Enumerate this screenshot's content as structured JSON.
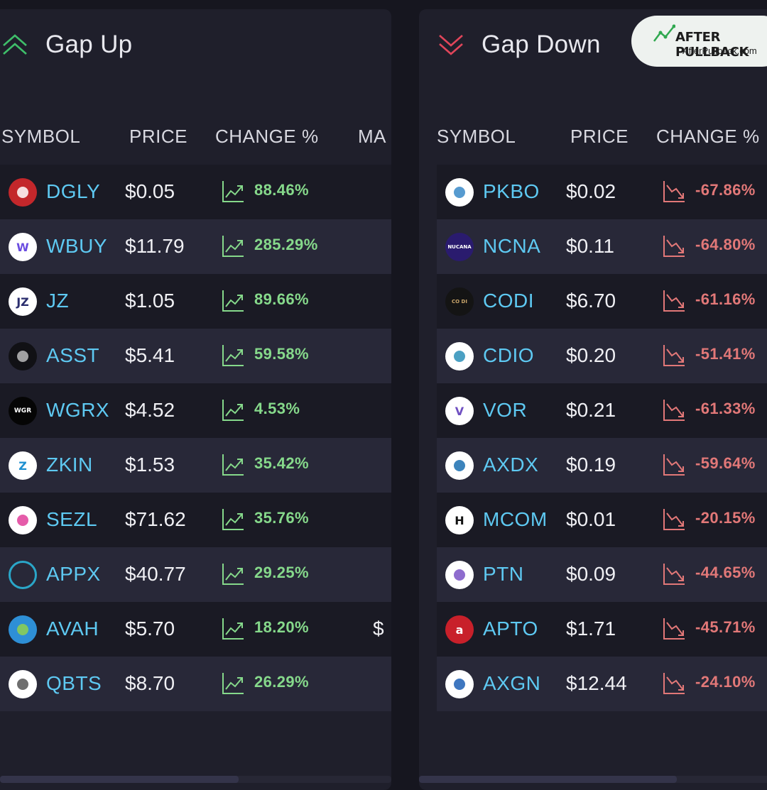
{
  "accent": {
    "up": "#86d98b",
    "down": "#e27878",
    "symbol": "#5ec9f2"
  },
  "gap_up": {
    "title": "Gap Up",
    "icon": "double-chevron-up-icon",
    "columns": {
      "symbol": "SYMBOL",
      "price": "PRICE",
      "change": "CHANGE %",
      "extra": "MA"
    },
    "rows": [
      {
        "symbol": "DGLY",
        "price": "$0.05",
        "change": "88.46%",
        "logo": {
          "text": "",
          "bg": "#c3272b",
          "fg": "#ffffff"
        }
      },
      {
        "symbol": "WBUY",
        "price": "$11.79",
        "change": "285.29%",
        "logo": {
          "text": "W",
          "bg": "#ffffff",
          "fg": "#6a4ce0"
        }
      },
      {
        "symbol": "JZ",
        "price": "$1.05",
        "change": "89.66%",
        "logo": {
          "text": "JZ",
          "bg": "#ffffff",
          "fg": "#2b2e6e"
        }
      },
      {
        "symbol": "ASST",
        "price": "$5.41",
        "change": "59.58%",
        "logo": {
          "text": "",
          "bg": "#111115",
          "fg": "#bbbbbb"
        }
      },
      {
        "symbol": "WGRX",
        "price": "$4.52",
        "change": "4.53%",
        "logo": {
          "text": "WGR",
          "bg": "#050505",
          "fg": "#ffffff"
        }
      },
      {
        "symbol": "ZKIN",
        "price": "$1.53",
        "change": "35.42%",
        "logo": {
          "text": "Z",
          "bg": "#ffffff",
          "fg": "#1d8fd0"
        }
      },
      {
        "symbol": "SEZL",
        "price": "$71.62",
        "change": "35.76%",
        "logo": {
          "text": "",
          "bg": "#ffffff",
          "fg": "#e0409a"
        }
      },
      {
        "symbol": "APPX",
        "price": "$40.77",
        "change": "29.25%",
        "logo": {
          "text": "",
          "bg": "transparent",
          "fg": "#2aa6c8"
        }
      },
      {
        "symbol": "AVAH",
        "price": "$5.70",
        "change": "18.20%",
        "logo": {
          "text": "",
          "bg": "#2e8fd6",
          "fg": "#8fd14f"
        }
      },
      {
        "symbol": "QBTS",
        "price": "$8.70",
        "change": "26.29%",
        "logo": {
          "text": "",
          "bg": "#ffffff",
          "fg": "#555555"
        }
      }
    ],
    "truncated_cell": "$"
  },
  "gap_down": {
    "title": "Gap Down",
    "icon": "double-chevron-down-icon",
    "columns": {
      "symbol": "SYMBOL",
      "price": "PRICE",
      "change": "CHANGE %"
    },
    "rows": [
      {
        "symbol": "PKBO",
        "price": "$0.02",
        "change": "-67.86%",
        "logo": {
          "text": "",
          "bg": "#ffffff",
          "fg": "#3a8ac8"
        }
      },
      {
        "symbol": "NCNA",
        "price": "$0.11",
        "change": "-64.80%",
        "logo": {
          "text": "NUCANA",
          "bg": "#2a1b6e",
          "fg": "#ffffff"
        }
      },
      {
        "symbol": "CODI",
        "price": "$6.70",
        "change": "-61.16%",
        "logo": {
          "text": "CO DI",
          "bg": "#141414",
          "fg": "#c9a56a"
        }
      },
      {
        "symbol": "CDIO",
        "price": "$0.20",
        "change": "-51.41%",
        "logo": {
          "text": "",
          "bg": "#ffffff",
          "fg": "#2c8fb8"
        }
      },
      {
        "symbol": "VOR",
        "price": "$0.21",
        "change": "-61.33%",
        "logo": {
          "text": "V",
          "bg": "#ffffff",
          "fg": "#6f4fc1"
        }
      },
      {
        "symbol": "AXDX",
        "price": "$0.19",
        "change": "-59.64%",
        "logo": {
          "text": "",
          "bg": "#ffffff",
          "fg": "#1a6fb0"
        }
      },
      {
        "symbol": "MCOM",
        "price": "$0.01",
        "change": "-20.15%",
        "logo": {
          "text": "H",
          "bg": "#ffffff",
          "fg": "#111111"
        }
      },
      {
        "symbol": "PTN",
        "price": "$0.09",
        "change": "-44.65%",
        "logo": {
          "text": "",
          "bg": "#ffffff",
          "fg": "#7a52c6"
        }
      },
      {
        "symbol": "APTO",
        "price": "$1.71",
        "change": "-45.71%",
        "logo": {
          "text": "a",
          "bg": "#c8202a",
          "fg": "#ffffff"
        }
      },
      {
        "symbol": "AXGN",
        "price": "$12.44",
        "change": "-24.10%",
        "logo": {
          "text": "",
          "bg": "#ffffff",
          "fg": "#1d5fb5"
        }
      }
    ]
  },
  "watermark": {
    "brand": "AFTER PULLBACK",
    "url": "AfterPullback.com"
  }
}
